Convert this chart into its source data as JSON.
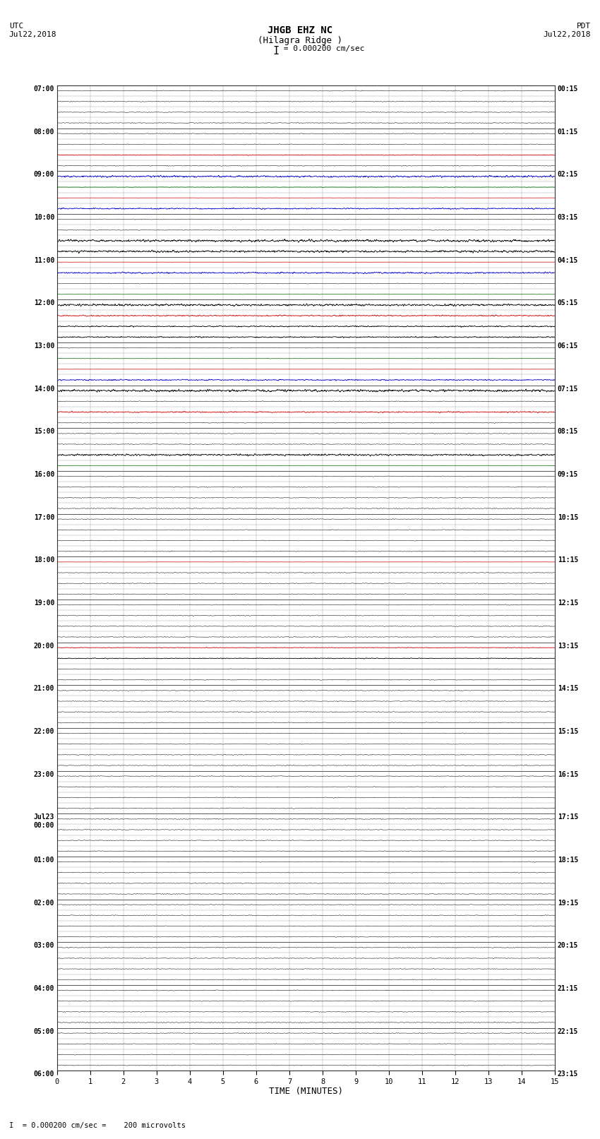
{
  "title_line1": "JHGB EHZ NC",
  "title_line2": "(Hilagra Ridge )",
  "scale_label": "I = 0.000200 cm/sec",
  "left_label_top": "UTC",
  "left_label_date": "Jul22,2018",
  "right_label_top": "PDT",
  "right_label_date": "Jul22,2018",
  "bottom_label": "TIME (MINUTES)",
  "footer_label": "= 0.000200 cm/sec =    200 microvolts",
  "bg_color": "#ffffff",
  "grid_color": "#888888",
  "trace_color": "#000000",
  "red_color": "#cc0000",
  "blue_color": "#0000cc",
  "green_color": "#006600",
  "N_ROWS": 92,
  "MINUTES": 15,
  "special_rows": {
    "6": [
      "red",
      0.02
    ],
    "8": [
      "blue",
      0.06
    ],
    "9": [
      "green",
      0.015
    ],
    "10": [
      "red",
      0.005
    ],
    "11": [
      "blue",
      0.04
    ],
    "14": [
      "black",
      0.08
    ],
    "15": [
      "black",
      0.07
    ],
    "16": [
      "red",
      0.005
    ],
    "17": [
      "blue",
      0.05
    ],
    "19": [
      "green",
      0.01
    ],
    "20": [
      "black",
      0.07
    ],
    "21": [
      "red",
      0.04
    ],
    "22": [
      "black",
      0.04
    ],
    "23": [
      "black",
      0.04
    ],
    "25": [
      "green",
      0.01
    ],
    "26": [
      "red",
      0.005
    ],
    "27": [
      "blue",
      0.04
    ],
    "28": [
      "black",
      0.08
    ],
    "30": [
      "red",
      0.04
    ],
    "34": [
      "black",
      0.06
    ],
    "35": [
      "green",
      0.01
    ],
    "44": [
      "red",
      0.005
    ],
    "52": [
      "red",
      0.02
    ],
    "53": [
      "black",
      0.025
    ]
  }
}
